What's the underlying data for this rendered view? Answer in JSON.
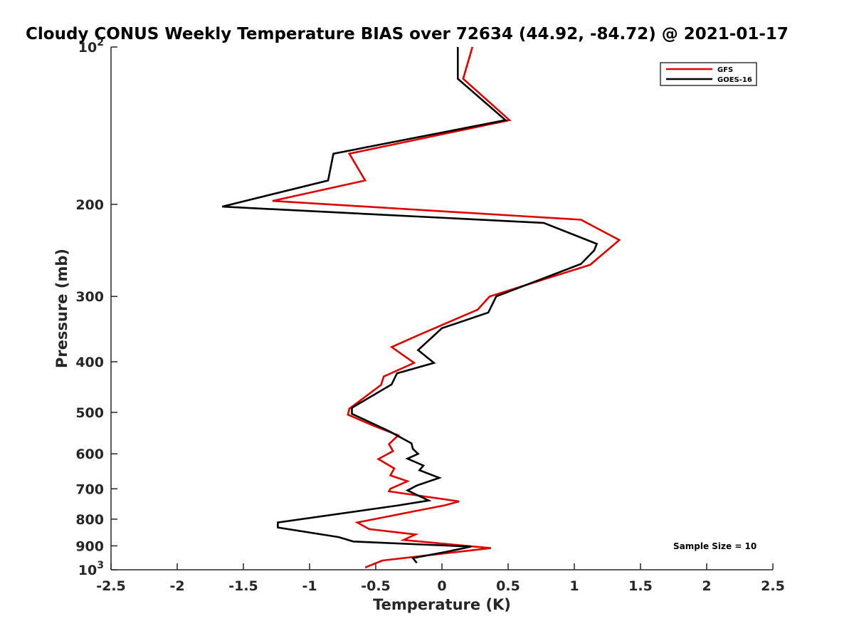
{
  "chart_data": {
    "type": "line",
    "title": "Cloudy CONUS Weekly Temperature BIAS over 72634 (44.92, -84.72) @ 2021-01-17",
    "xlabel": "Temperature (K)",
    "ylabel": "Pressure (mb)",
    "xlim": [
      -2.5,
      2.5
    ],
    "ylim": [
      100,
      1000
    ],
    "y_scale": "log",
    "y_reversed": true,
    "grid": false,
    "legend_position": "top-right",
    "x_ticks": [
      "-2.5",
      "-2",
      "-1.5",
      "-1",
      "-0.5",
      "0",
      "0.5",
      "1",
      "1.5",
      "2",
      "2.5"
    ],
    "y_ticks": [
      {
        "value": 100,
        "base": "10",
        "exp": "2"
      },
      {
        "value": 200,
        "label": "200"
      },
      {
        "value": 300,
        "label": "300"
      },
      {
        "value": 400,
        "label": "400"
      },
      {
        "value": 500,
        "label": "500"
      },
      {
        "value": 600,
        "label": "600"
      },
      {
        "value": 700,
        "label": "700"
      },
      {
        "value": 800,
        "label": "800"
      },
      {
        "value": 900,
        "label": "900"
      },
      {
        "value": 1000,
        "base": "10",
        "exp": "3"
      }
    ],
    "annotation": "Sample Size = 10",
    "series": [
      {
        "name": "GFS",
        "color": "#e00000",
        "points": [
          [
            0.23,
            100
          ],
          [
            0.16,
            115
          ],
          [
            0.51,
            138
          ],
          [
            -0.7,
            160
          ],
          [
            -0.58,
            180
          ],
          [
            -1.28,
            197
          ],
          [
            1.05,
            214
          ],
          [
            1.34,
            234
          ],
          [
            1.12,
            261
          ],
          [
            0.36,
            300
          ],
          [
            0.27,
            318
          ],
          [
            -0.17,
            355
          ],
          [
            -0.38,
            375
          ],
          [
            -0.21,
            402
          ],
          [
            -0.44,
            427
          ],
          [
            -0.46,
            443
          ],
          [
            -0.7,
            492
          ],
          [
            -0.71,
            505
          ],
          [
            -0.52,
            530
          ],
          [
            -0.33,
            553
          ],
          [
            -0.4,
            575
          ],
          [
            -0.37,
            593
          ],
          [
            -0.48,
            614
          ],
          [
            -0.36,
            640
          ],
          [
            -0.39,
            660
          ],
          [
            -0.26,
            677
          ],
          [
            -0.39,
            700
          ],
          [
            -0.4,
            708
          ],
          [
            0.13,
            740
          ],
          [
            0.03,
            752
          ],
          [
            -0.64,
            812
          ],
          [
            -0.55,
            836
          ],
          [
            -0.2,
            856
          ],
          [
            -0.29,
            877
          ],
          [
            0.37,
            909
          ],
          [
            -0.45,
            960
          ],
          [
            -0.58,
            990
          ]
        ]
      },
      {
        "name": "GOES-16",
        "color": "#000000",
        "points": [
          [
            0.12,
            100
          ],
          [
            0.12,
            115
          ],
          [
            0.48,
            138
          ],
          [
            -0.82,
            160
          ],
          [
            -0.86,
            180
          ],
          [
            -1.66,
            202
          ],
          [
            0.77,
            217
          ],
          [
            1.17,
            238
          ],
          [
            1.15,
            245
          ],
          [
            1.05,
            260
          ],
          [
            0.41,
            300
          ],
          [
            0.35,
            322
          ],
          [
            0.0,
            345
          ],
          [
            -0.18,
            380
          ],
          [
            -0.06,
            402
          ],
          [
            -0.34,
            421
          ],
          [
            -0.38,
            442
          ],
          [
            -0.68,
            490
          ],
          [
            -0.68,
            503
          ],
          [
            -0.4,
            543
          ],
          [
            -0.23,
            573
          ],
          [
            -0.22,
            587
          ],
          [
            -0.18,
            600
          ],
          [
            -0.26,
            613
          ],
          [
            -0.14,
            632
          ],
          [
            -0.17,
            645
          ],
          [
            -0.02,
            667
          ],
          [
            -0.19,
            690
          ],
          [
            -0.26,
            705
          ],
          [
            -0.1,
            737
          ],
          [
            -0.33,
            753
          ],
          [
            -1.24,
            812
          ],
          [
            -1.24,
            830
          ],
          [
            -0.78,
            866
          ],
          [
            -0.67,
            883
          ],
          [
            0.22,
            903
          ],
          [
            0.04,
            923
          ],
          [
            -0.22,
            950
          ],
          [
            -0.19,
            970
          ]
        ]
      }
    ]
  }
}
